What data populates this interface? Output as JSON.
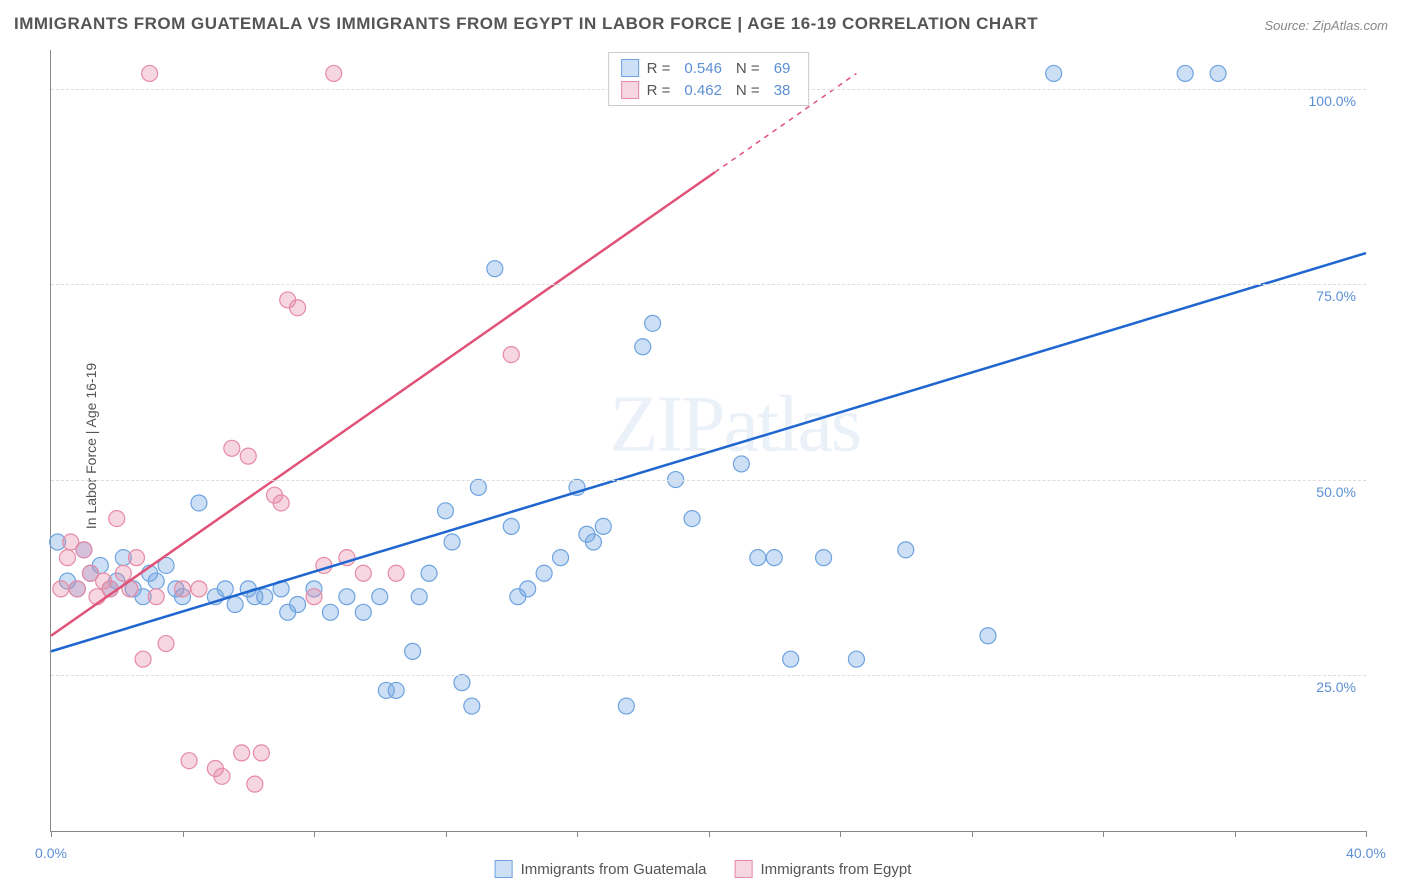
{
  "title": "IMMIGRANTS FROM GUATEMALA VS IMMIGRANTS FROM EGYPT IN LABOR FORCE | AGE 16-19 CORRELATION CHART",
  "source": "Source: ZipAtlas.com",
  "watermark": "ZIPatlas",
  "ylabel": "In Labor Force | Age 16-19",
  "chart": {
    "type": "scatter",
    "background_color": "#ffffff",
    "grid_color": "#dddddd",
    "axis_color": "#888888",
    "xlim": [
      0,
      40
    ],
    "ylim": [
      5,
      105
    ],
    "xticks": [
      0,
      4,
      8,
      12,
      16,
      20,
      24,
      28,
      32,
      36,
      40
    ],
    "xtick_labels": {
      "0": "0.0%",
      "40": "40.0%"
    },
    "yticks": [
      25,
      50,
      75,
      100
    ],
    "ytick_labels": {
      "25": "25.0%",
      "50": "50.0%",
      "75": "75.0%",
      "100": "100.0%"
    },
    "tick_color": "#5b8fd6",
    "tick_fontsize": 14,
    "title_fontsize": 17,
    "title_color": "#555555",
    "marker_radius": 8,
    "marker_opacity": 0.45,
    "line_width": 2.5,
    "series": [
      {
        "name": "Immigrants from Guatemala",
        "color": "#6ea3e0",
        "fill": "rgba(110,163,224,0.35)",
        "line_color": "#1f66d0",
        "stats": {
          "R": "0.546",
          "N": "69"
        },
        "regression": {
          "x1": 0,
          "y1": 28,
          "x2": 40,
          "y2": 79
        },
        "points": [
          [
            0.2,
            42
          ],
          [
            0.5,
            37
          ],
          [
            0.8,
            36
          ],
          [
            1.0,
            41
          ],
          [
            1.2,
            38
          ],
          [
            1.5,
            39
          ],
          [
            1.8,
            36
          ],
          [
            2.0,
            37
          ],
          [
            2.2,
            40
          ],
          [
            2.5,
            36
          ],
          [
            2.8,
            35
          ],
          [
            3.0,
            38
          ],
          [
            3.2,
            37
          ],
          [
            3.5,
            39
          ],
          [
            3.8,
            36
          ],
          [
            4.0,
            35
          ],
          [
            4.5,
            47
          ],
          [
            5.0,
            35
          ],
          [
            5.3,
            36
          ],
          [
            5.6,
            34
          ],
          [
            6.0,
            36
          ],
          [
            6.2,
            35
          ],
          [
            6.5,
            35
          ],
          [
            7.0,
            36
          ],
          [
            7.2,
            33
          ],
          [
            7.5,
            34
          ],
          [
            8.0,
            36
          ],
          [
            8.5,
            33
          ],
          [
            9.0,
            35
          ],
          [
            9.5,
            33
          ],
          [
            10.0,
            35
          ],
          [
            10.2,
            23
          ],
          [
            10.5,
            23
          ],
          [
            11.0,
            28
          ],
          [
            11.2,
            35
          ],
          [
            11.5,
            38
          ],
          [
            12.0,
            46
          ],
          [
            12.2,
            42
          ],
          [
            12.5,
            24
          ],
          [
            12.8,
            21
          ],
          [
            13.0,
            49
          ],
          [
            13.5,
            77
          ],
          [
            14.0,
            44
          ],
          [
            14.2,
            35
          ],
          [
            14.5,
            36
          ],
          [
            15.0,
            38
          ],
          [
            15.5,
            40
          ],
          [
            16.0,
            49
          ],
          [
            16.3,
            43
          ],
          [
            16.5,
            42
          ],
          [
            16.8,
            44
          ],
          [
            17.5,
            21
          ],
          [
            18.0,
            67
          ],
          [
            18.3,
            70
          ],
          [
            18.5,
            102
          ],
          [
            19.0,
            50
          ],
          [
            19.5,
            45
          ],
          [
            20.5,
            102
          ],
          [
            21.0,
            52
          ],
          [
            21.5,
            40
          ],
          [
            22.0,
            40
          ],
          [
            22.5,
            27
          ],
          [
            23.5,
            40
          ],
          [
            24.5,
            27
          ],
          [
            26.0,
            41
          ],
          [
            28.5,
            30
          ],
          [
            30.5,
            102
          ],
          [
            34.5,
            102
          ],
          [
            35.5,
            102
          ]
        ]
      },
      {
        "name": "Immigrants from Egypt",
        "color": "#e68aa5",
        "fill": "rgba(230,138,165,0.35)",
        "line_color": "#e05277",
        "stats": {
          "R": "0.462",
          "N": "38"
        },
        "regression": {
          "x1": 0,
          "y1": 30,
          "x2": 24.5,
          "y2": 102
        },
        "regression_dashed_from": 20.2,
        "points": [
          [
            0.3,
            36
          ],
          [
            0.5,
            40
          ],
          [
            0.6,
            42
          ],
          [
            0.8,
            36
          ],
          [
            1.0,
            41
          ],
          [
            1.2,
            38
          ],
          [
            1.4,
            35
          ],
          [
            1.6,
            37
          ],
          [
            1.8,
            36
          ],
          [
            2.0,
            45
          ],
          [
            2.2,
            38
          ],
          [
            2.4,
            36
          ],
          [
            2.6,
            40
          ],
          [
            2.8,
            27
          ],
          [
            3.0,
            102
          ],
          [
            3.2,
            35
          ],
          [
            3.5,
            29
          ],
          [
            4.0,
            36
          ],
          [
            4.2,
            14
          ],
          [
            4.5,
            36
          ],
          [
            5.0,
            13
          ],
          [
            5.2,
            12
          ],
          [
            5.5,
            54
          ],
          [
            5.8,
            15
          ],
          [
            6.0,
            53
          ],
          [
            6.2,
            11
          ],
          [
            6.4,
            15
          ],
          [
            6.8,
            48
          ],
          [
            7.0,
            47
          ],
          [
            7.2,
            73
          ],
          [
            7.5,
            72
          ],
          [
            8.0,
            35
          ],
          [
            8.3,
            39
          ],
          [
            8.6,
            102
          ],
          [
            9.0,
            40
          ],
          [
            9.5,
            38
          ],
          [
            10.5,
            38
          ],
          [
            14.0,
            66
          ]
        ]
      }
    ]
  },
  "legend": {
    "series1_label": "Immigrants from Guatemala",
    "series2_label": "Immigrants from Egypt"
  },
  "stats_labels": {
    "R": "R =",
    "N": "N ="
  }
}
